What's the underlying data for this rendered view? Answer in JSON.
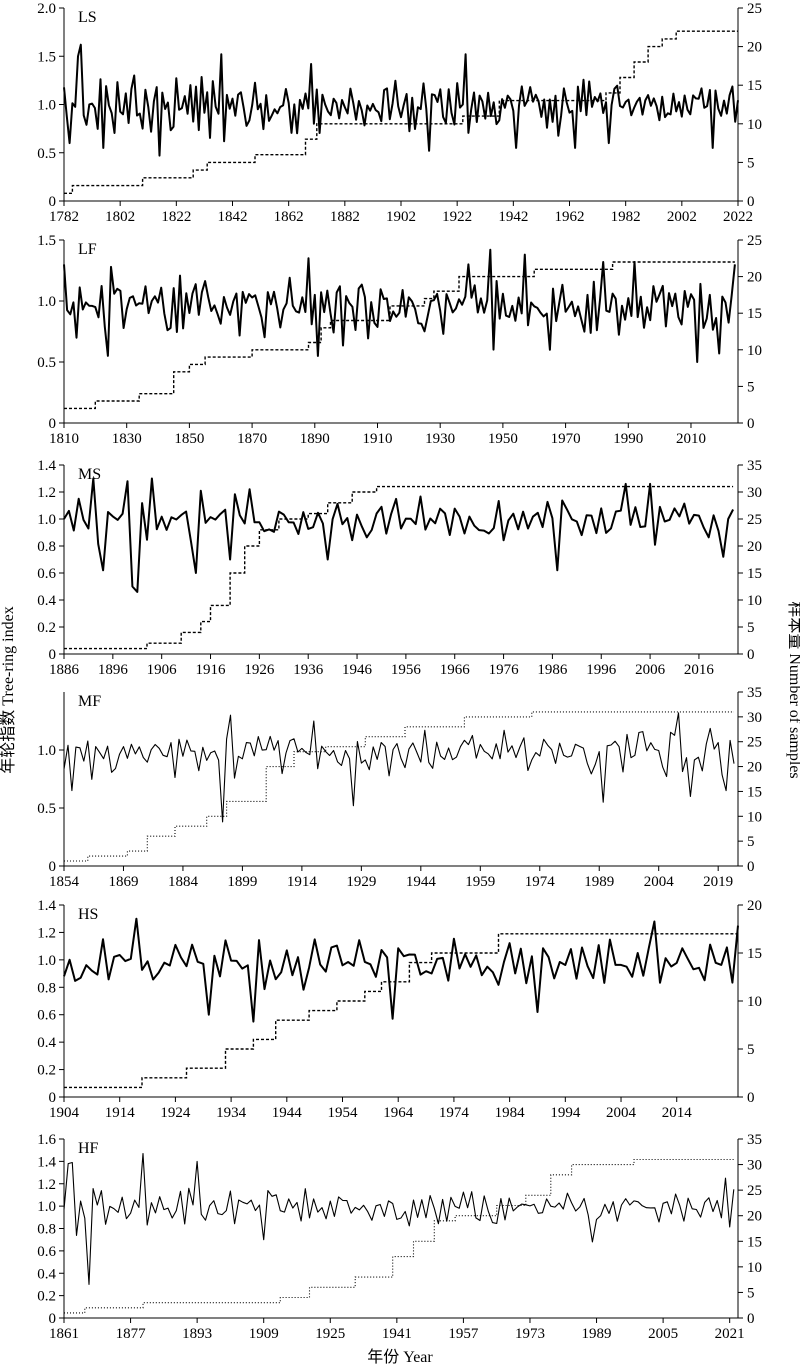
{
  "labels": {
    "ylabel_left": "年轮指数 Tree-ring index",
    "ylabel_right": "样本量 Number of samples",
    "xlabel": "年份 Year"
  },
  "chart_data": [
    {
      "type": "line",
      "panel_label": "LS",
      "xlim": [
        1782,
        2022
      ],
      "xticks": [
        1782,
        1802,
        1822,
        1842,
        1862,
        1882,
        1902,
        1922,
        1942,
        1962,
        1982,
        2002,
        2022
      ],
      "ylim_left": [
        0,
        2.0
      ],
      "yticks_left": [
        "0",
        "0.5",
        "1.0",
        "1.5",
        "2.0"
      ],
      "ylim_right": [
        0,
        25
      ],
      "yticks_right": [
        "0",
        "5",
        "10",
        "15",
        "20",
        "25"
      ],
      "index_style": "thick",
      "samples_style": "dashed",
      "index_mean": 0.98,
      "index_amp": 0.22,
      "index_start": 1782,
      "index_end": 2022,
      "index_keypoints": [
        [
          1784,
          0.6
        ],
        [
          1787,
          1.5
        ],
        [
          1788,
          1.62
        ],
        [
          1791,
          1.0
        ],
        [
          1796,
          0.55
        ],
        [
          1807,
          1.3
        ],
        [
          1810,
          0.75
        ],
        [
          1815,
          1.18
        ],
        [
          1816,
          0.47
        ],
        [
          1838,
          1.52
        ],
        [
          1870,
          1.42
        ],
        [
          1925,
          1.52
        ],
        [
          1912,
          0.52
        ],
        [
          1943,
          0.55
        ],
        [
          1964,
          0.55
        ],
        [
          1976,
          0.6
        ],
        [
          2013,
          0.55
        ]
      ],
      "samples": [
        [
          1782,
          1
        ],
        [
          1785,
          2
        ],
        [
          1810,
          3
        ],
        [
          1828,
          4
        ],
        [
          1833,
          5
        ],
        [
          1850,
          6
        ],
        [
          1868,
          8
        ],
        [
          1872,
          10
        ],
        [
          1924,
          11
        ],
        [
          1937,
          13
        ],
        [
          1975,
          14
        ],
        [
          1980,
          16
        ],
        [
          1985,
          18
        ],
        [
          1990,
          20
        ],
        [
          1995,
          21
        ],
        [
          2000,
          22
        ],
        [
          2022,
          22
        ]
      ]
    },
    {
      "type": "line",
      "panel_label": "LF",
      "xlim": [
        1810,
        2025
      ],
      "xticks": [
        1810,
        1830,
        1850,
        1870,
        1890,
        1910,
        1930,
        1950,
        1970,
        1990,
        2010
      ],
      "ylim_left": [
        0,
        1.5
      ],
      "yticks_left": [
        "0",
        "0.5",
        "1.0",
        "1.5"
      ],
      "ylim_right": [
        0,
        25
      ],
      "yticks_right": [
        "0",
        "5",
        "10",
        "15",
        "20",
        "25"
      ],
      "index_style": "thick",
      "samples_style": "dashed",
      "index_mean": 0.96,
      "index_amp": 0.2,
      "index_start": 1810,
      "index_end": 2024,
      "index_keypoints": [
        [
          1810,
          1.3
        ],
        [
          1824,
          0.55
        ],
        [
          1888,
          1.35
        ],
        [
          1891,
          0.55
        ],
        [
          1939,
          1.3
        ],
        [
          1946,
          1.42
        ],
        [
          1957,
          1.38
        ],
        [
          1965,
          0.6
        ],
        [
          1982,
          1.32
        ],
        [
          1992,
          1.32
        ],
        [
          2012,
          0.5
        ],
        [
          2019,
          0.57
        ],
        [
          2024,
          1.3
        ]
      ],
      "samples": [
        [
          1810,
          2
        ],
        [
          1820,
          3
        ],
        [
          1834,
          4
        ],
        [
          1845,
          7
        ],
        [
          1850,
          8
        ],
        [
          1855,
          9
        ],
        [
          1870,
          10
        ],
        [
          1888,
          11
        ],
        [
          1892,
          13
        ],
        [
          1895,
          14
        ],
        [
          1910,
          14
        ],
        [
          1914,
          16
        ],
        [
          1925,
          17
        ],
        [
          1928,
          18
        ],
        [
          1936,
          20
        ],
        [
          1960,
          21
        ],
        [
          1985,
          22
        ],
        [
          2024,
          22
        ]
      ]
    },
    {
      "type": "line",
      "panel_label": "MS",
      "xlim": [
        1886,
        2024
      ],
      "xticks": [
        1886,
        1896,
        1906,
        1916,
        1926,
        1936,
        1946,
        1956,
        1966,
        1976,
        1986,
        1996,
        2006,
        2016
      ],
      "ylim_left": [
        0,
        1.4
      ],
      "yticks_left": [
        "0",
        "0.2",
        "0.4",
        "0.6",
        "0.8",
        "1.0",
        "1.2",
        "1.4"
      ],
      "ylim_right": [
        0,
        35
      ],
      "yticks_right": [
        "0",
        "5",
        "10",
        "15",
        "20",
        "25",
        "30",
        "35"
      ],
      "index_style": "thick",
      "samples_style": "dashed",
      "index_mean": 0.98,
      "index_amp": 0.13,
      "index_start": 1886,
      "index_end": 2023,
      "index_keypoints": [
        [
          1886,
          1.0
        ],
        [
          1889,
          1.15
        ],
        [
          1891,
          0.93
        ],
        [
          1892,
          1.3
        ],
        [
          1894,
          0.62
        ],
        [
          1899,
          1.28
        ],
        [
          1900,
          0.5
        ],
        [
          1901,
          0.46
        ],
        [
          1904,
          1.3
        ],
        [
          1913,
          0.6
        ],
        [
          1920,
          0.7
        ],
        [
          1924,
          1.22
        ],
        [
          1940,
          0.7
        ],
        [
          1987,
          0.62
        ],
        [
          2001,
          1.26
        ],
        [
          2006,
          1.26
        ],
        [
          2021,
          0.72
        ],
        [
          2023,
          1.07
        ]
      ],
      "samples": [
        [
          1886,
          1
        ],
        [
          1900,
          1
        ],
        [
          1903,
          2
        ],
        [
          1910,
          4
        ],
        [
          1914,
          6
        ],
        [
          1916,
          9
        ],
        [
          1920,
          15
        ],
        [
          1923,
          20
        ],
        [
          1926,
          23
        ],
        [
          1930,
          25
        ],
        [
          1936,
          26
        ],
        [
          1940,
          28
        ],
        [
          1945,
          30
        ],
        [
          1950,
          31
        ],
        [
          2023,
          31
        ]
      ]
    },
    {
      "type": "line",
      "panel_label": "MF",
      "xlim": [
        1854,
        2024
      ],
      "xticks": [
        1854,
        1869,
        1884,
        1899,
        1914,
        1929,
        1944,
        1959,
        1974,
        1989,
        2004,
        2019
      ],
      "ylim_left": [
        0,
        1.5
      ],
      "yticks_left": [
        "0",
        "0.5",
        "1.0"
      ],
      "ylim_right": [
        0,
        35
      ],
      "yticks_right": [
        "0",
        "5",
        "10",
        "15",
        "20",
        "25",
        "30",
        "35"
      ],
      "index_style": "thin",
      "samples_style": "dotted",
      "index_mean": 0.98,
      "index_amp": 0.18,
      "index_start": 1854,
      "index_end": 2023,
      "index_keypoints": [
        [
          1856,
          0.65
        ],
        [
          1894,
          0.38
        ],
        [
          1896,
          1.3
        ],
        [
          1917,
          1.25
        ],
        [
          1927,
          0.52
        ],
        [
          1990,
          0.55
        ],
        [
          2009,
          1.32
        ],
        [
          2012,
          0.6
        ],
        [
          2021,
          0.65
        ]
      ],
      "samples": [
        [
          1854,
          1
        ],
        [
          1860,
          2
        ],
        [
          1870,
          3
        ],
        [
          1875,
          6
        ],
        [
          1882,
          8
        ],
        [
          1890,
          10
        ],
        [
          1895,
          13
        ],
        [
          1905,
          20
        ],
        [
          1912,
          23
        ],
        [
          1920,
          24
        ],
        [
          1930,
          26
        ],
        [
          1940,
          28
        ],
        [
          1955,
          30
        ],
        [
          1972,
          31
        ],
        [
          2023,
          31
        ]
      ]
    },
    {
      "type": "line",
      "panel_label": "HS",
      "xlim": [
        1904,
        2025
      ],
      "xticks": [
        1904,
        1914,
        1924,
        1934,
        1944,
        1954,
        1964,
        1974,
        1984,
        1994,
        2004,
        2014
      ],
      "ylim_left": [
        0,
        1.4
      ],
      "yticks_left": [
        "0",
        "0.2",
        "0.4",
        "0.6",
        "0.8",
        "1.0",
        "1.2",
        "1.4"
      ],
      "ylim_right": [
        0,
        20
      ],
      "yticks_right": [
        "0",
        "5",
        "10",
        "15",
        "20"
      ],
      "index_style": "thick",
      "samples_style": "dashed",
      "index_mean": 0.97,
      "index_amp": 0.16,
      "index_start": 1904,
      "index_end": 2025,
      "index_keypoints": [
        [
          1904,
          0.88
        ],
        [
          1917,
          1.3
        ],
        [
          1930,
          0.6
        ],
        [
          1938,
          0.55
        ],
        [
          1963,
          0.57
        ],
        [
          1989,
          0.62
        ],
        [
          2010,
          1.28
        ],
        [
          2025,
          1.25
        ]
      ],
      "samples": [
        [
          1904,
          1
        ],
        [
          1916,
          1
        ],
        [
          1918,
          2
        ],
        [
          1926,
          3
        ],
        [
          1933,
          5
        ],
        [
          1938,
          6
        ],
        [
          1942,
          8
        ],
        [
          1948,
          9
        ],
        [
          1953,
          10
        ],
        [
          1958,
          11
        ],
        [
          1961,
          12
        ],
        [
          1966,
          14
        ],
        [
          1970,
          15
        ],
        [
          1982,
          17
        ],
        [
          2025,
          17
        ]
      ]
    },
    {
      "type": "line",
      "panel_label": "HF",
      "xlim": [
        1861,
        2023
      ],
      "xticks": [
        1861,
        1877,
        1893,
        1909,
        1925,
        1941,
        1957,
        1973,
        1989,
        2005,
        2021
      ],
      "ylim_left": [
        0,
        1.6
      ],
      "yticks_left": [
        "0",
        "0.2",
        "0.4",
        "0.6",
        "0.8",
        "1.0",
        "1.2",
        "1.4",
        "1.6"
      ],
      "ylim_right": [
        0,
        35
      ],
      "yticks_right": [
        "0",
        "5",
        "10",
        "15",
        "20",
        "25",
        "30",
        "35"
      ],
      "index_style": "thin",
      "samples_style": "dotted",
      "index_mean": 0.98,
      "index_amp": 0.13,
      "index_start": 1861,
      "index_end": 2022,
      "index_keypoints": [
        [
          1861,
          0.97
        ],
        [
          1862,
          1.38
        ],
        [
          1863,
          1.39
        ],
        [
          1867,
          0.3
        ],
        [
          1880,
          1.47
        ],
        [
          1893,
          1.4
        ],
        [
          1909,
          0.7
        ],
        [
          1988,
          0.68
        ],
        [
          2020,
          1.25
        ],
        [
          2022,
          1.15
        ]
      ],
      "samples": [
        [
          1861,
          1
        ],
        [
          1866,
          2
        ],
        [
          1880,
          3
        ],
        [
          1913,
          4
        ],
        [
          1920,
          6
        ],
        [
          1931,
          8
        ],
        [
          1940,
          12
        ],
        [
          1945,
          15
        ],
        [
          1950,
          19
        ],
        [
          1955,
          20
        ],
        [
          1965,
          22
        ],
        [
          1972,
          24
        ],
        [
          1978,
          28
        ],
        [
          1983,
          30
        ],
        [
          1998,
          31
        ],
        [
          2022,
          31
        ]
      ]
    }
  ]
}
